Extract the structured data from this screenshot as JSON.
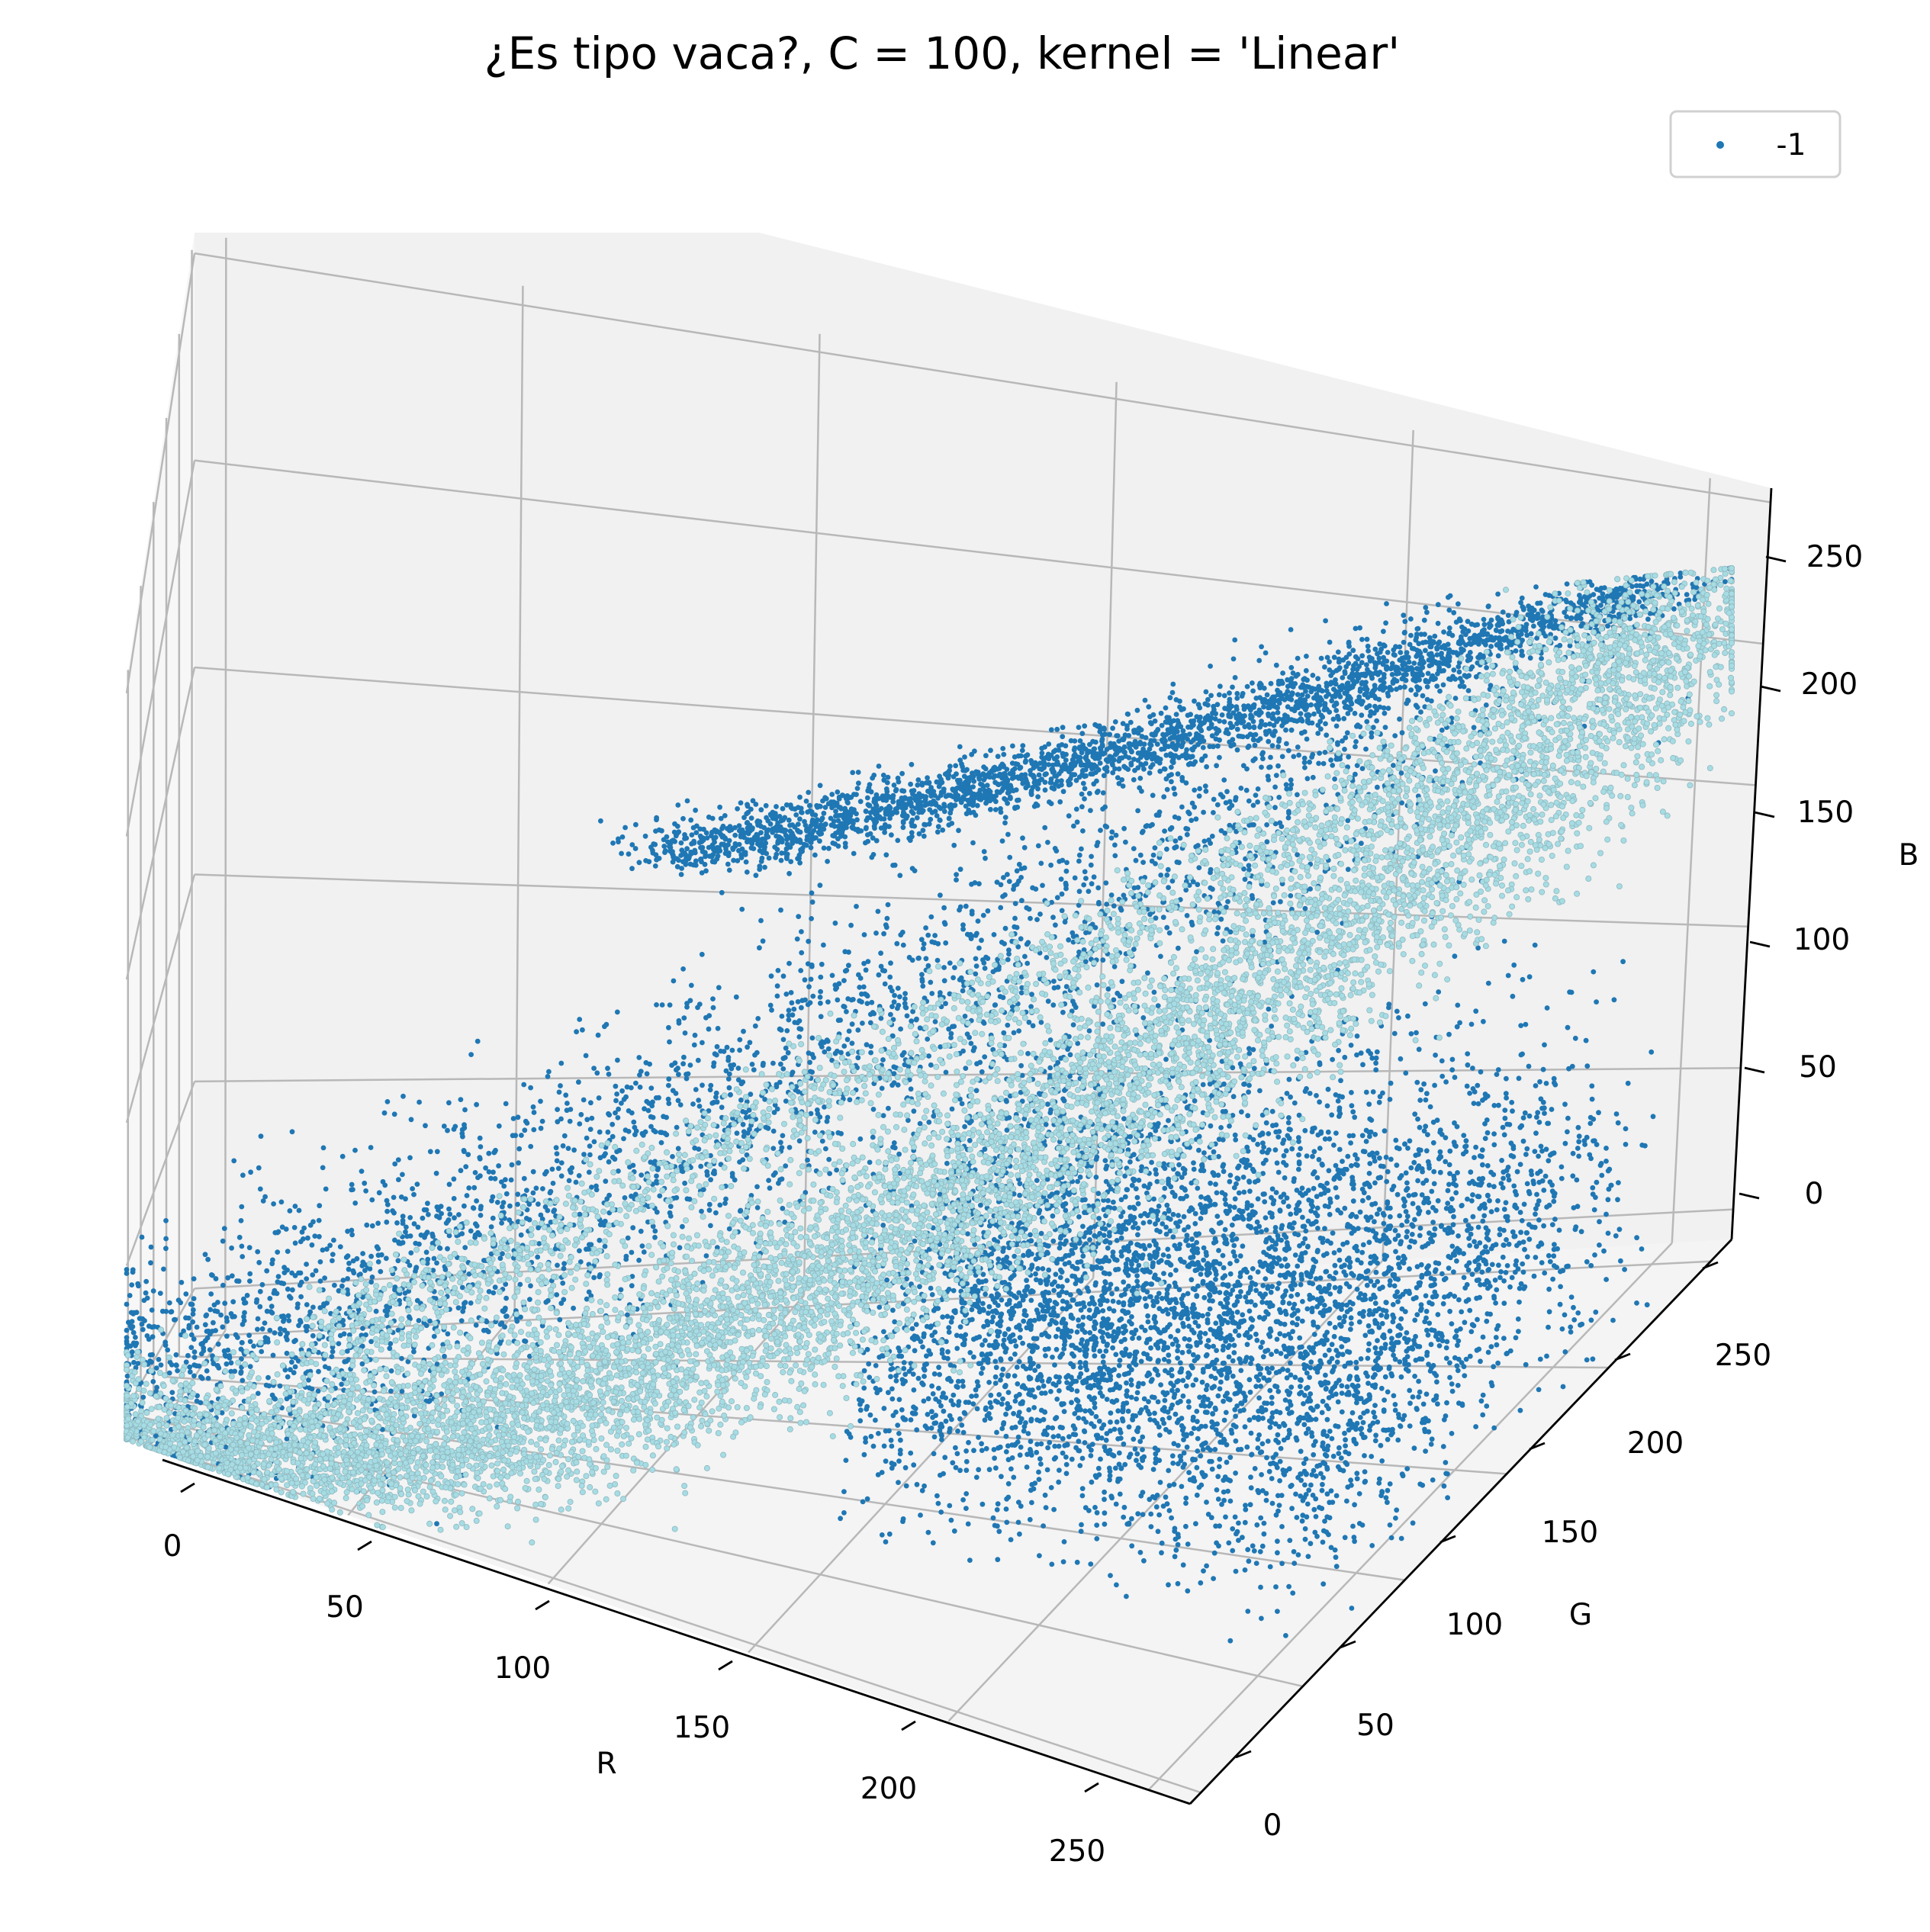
{
  "chart_data": {
    "type": "scatter",
    "projection": "3d",
    "title": "¿Es tipo vaca?, C = 100, kernel = 'Linear'",
    "xlabel": "R",
    "ylabel": "G",
    "zlabel": "B",
    "xlim": [
      0,
      255
    ],
    "ylim": [
      0,
      255
    ],
    "zlim": [
      0,
      255
    ],
    "x_ticks": [
      "0",
      "50",
      "100",
      "150",
      "200",
      "250"
    ],
    "y_ticks": [
      "0",
      "50",
      "100",
      "150",
      "200",
      "250"
    ],
    "z_ticks": [
      "0",
      "50",
      "100",
      "150",
      "200",
      "250"
    ],
    "grid": true,
    "legend": {
      "placement": "top-right",
      "entries": [
        "-1"
      ]
    },
    "series": [
      {
        "name": "-1",
        "color": "#1f77b4"
      },
      {
        "color": "#a6dce4"
      }
    ]
  }
}
